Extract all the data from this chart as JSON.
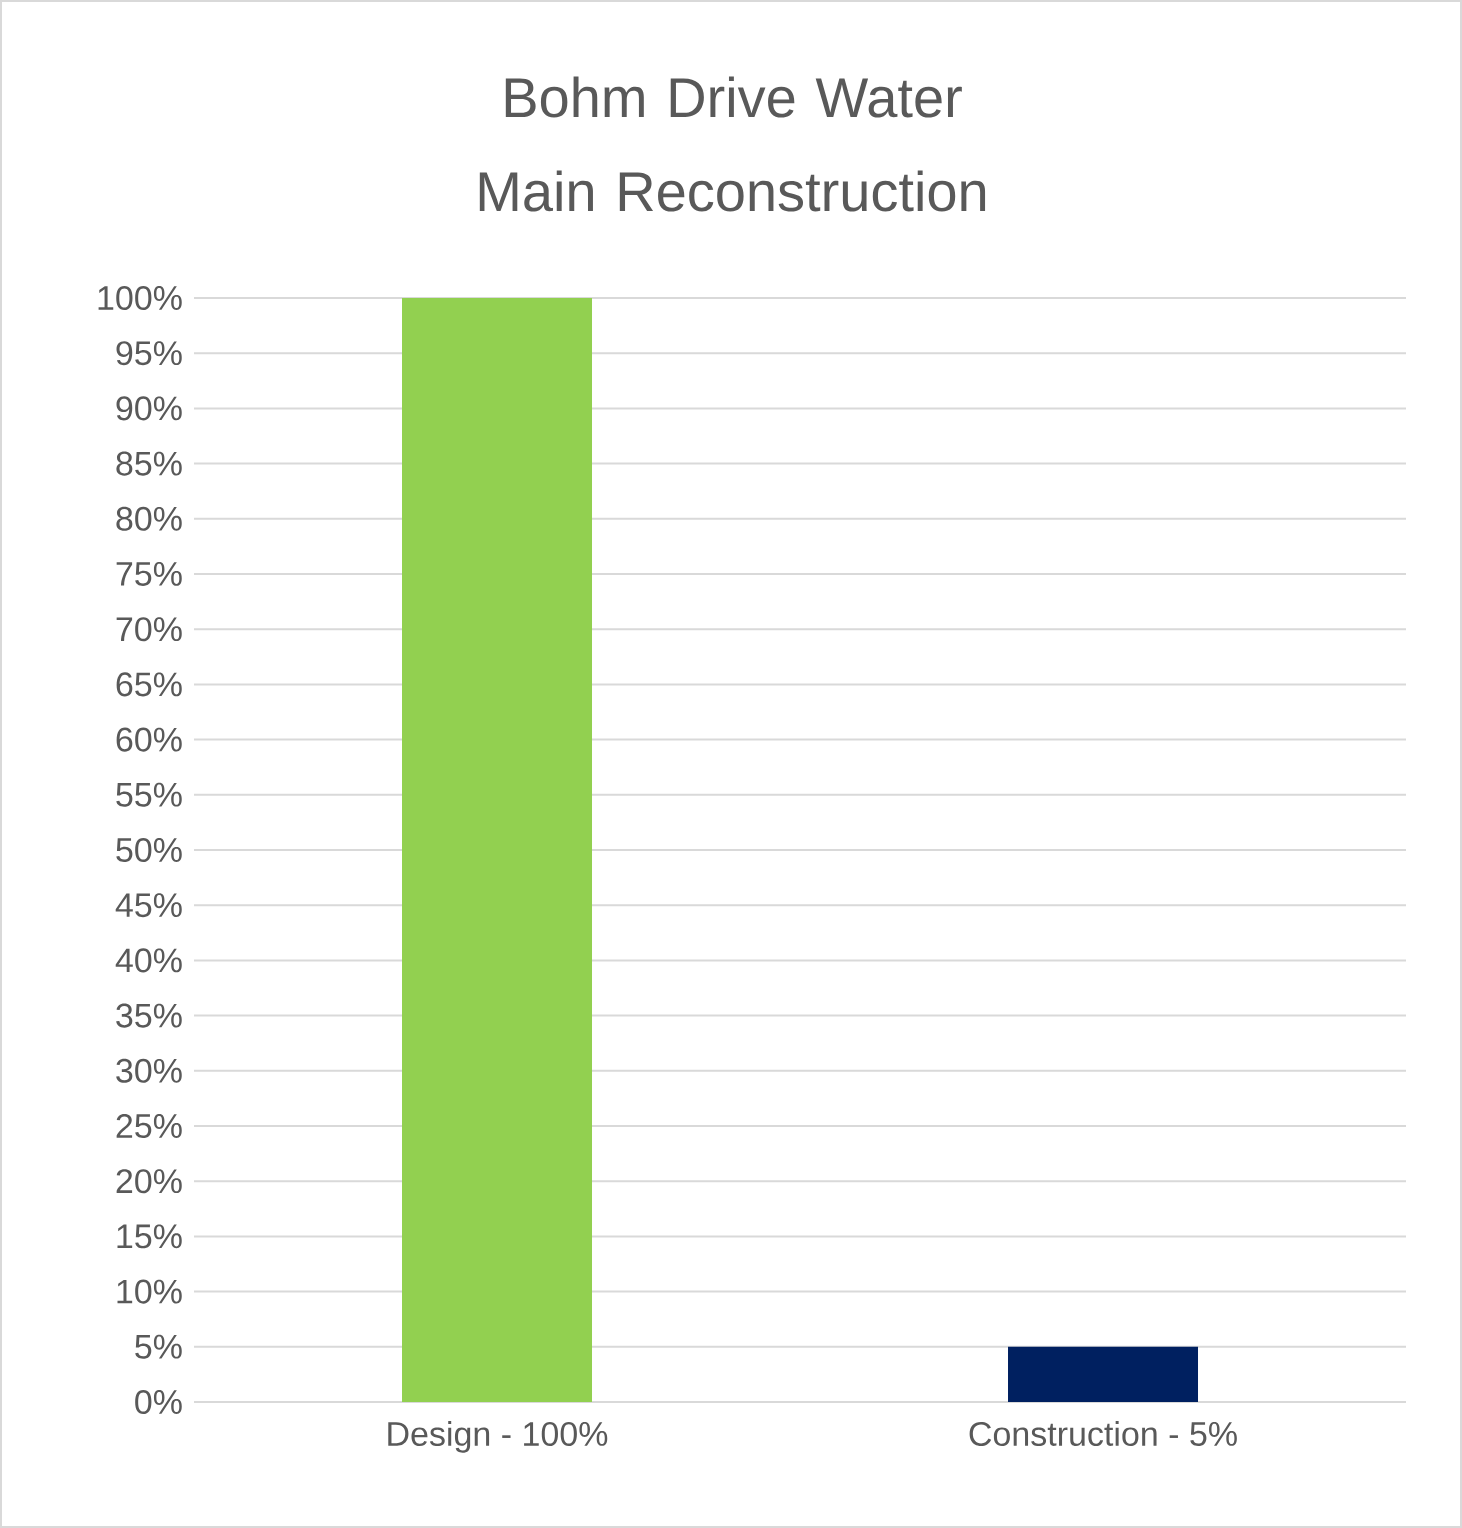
{
  "chart_data": {
    "type": "bar",
    "title": "Bohm Drive Water Main Reconstruction",
    "categories": [
      "Design - 100%",
      "Construction - 5%"
    ],
    "values": [
      100,
      5
    ],
    "colors": [
      "#92d050",
      "#002060"
    ],
    "ylim": [
      0,
      100
    ],
    "yticks": [
      {
        "value": 0,
        "label": "0%"
      },
      {
        "value": 5,
        "label": "5%"
      },
      {
        "value": 10,
        "label": "10%"
      },
      {
        "value": 15,
        "label": "15%"
      },
      {
        "value": 20,
        "label": "20%"
      },
      {
        "value": 25,
        "label": "25%"
      },
      {
        "value": 30,
        "label": "30%"
      },
      {
        "value": 35,
        "label": "35%"
      },
      {
        "value": 40,
        "label": "40%"
      },
      {
        "value": 45,
        "label": "45%"
      },
      {
        "value": 50,
        "label": "50%"
      },
      {
        "value": 55,
        "label": "55%"
      },
      {
        "value": 60,
        "label": "60%"
      },
      {
        "value": 65,
        "label": "65%"
      },
      {
        "value": 70,
        "label": "70%"
      },
      {
        "value": 75,
        "label": "75%"
      },
      {
        "value": 80,
        "label": "80%"
      },
      {
        "value": 85,
        "label": "85%"
      },
      {
        "value": 90,
        "label": "90%"
      },
      {
        "value": 95,
        "label": "95%"
      },
      {
        "value": 100,
        "label": "100%"
      }
    ],
    "grid": "y"
  }
}
